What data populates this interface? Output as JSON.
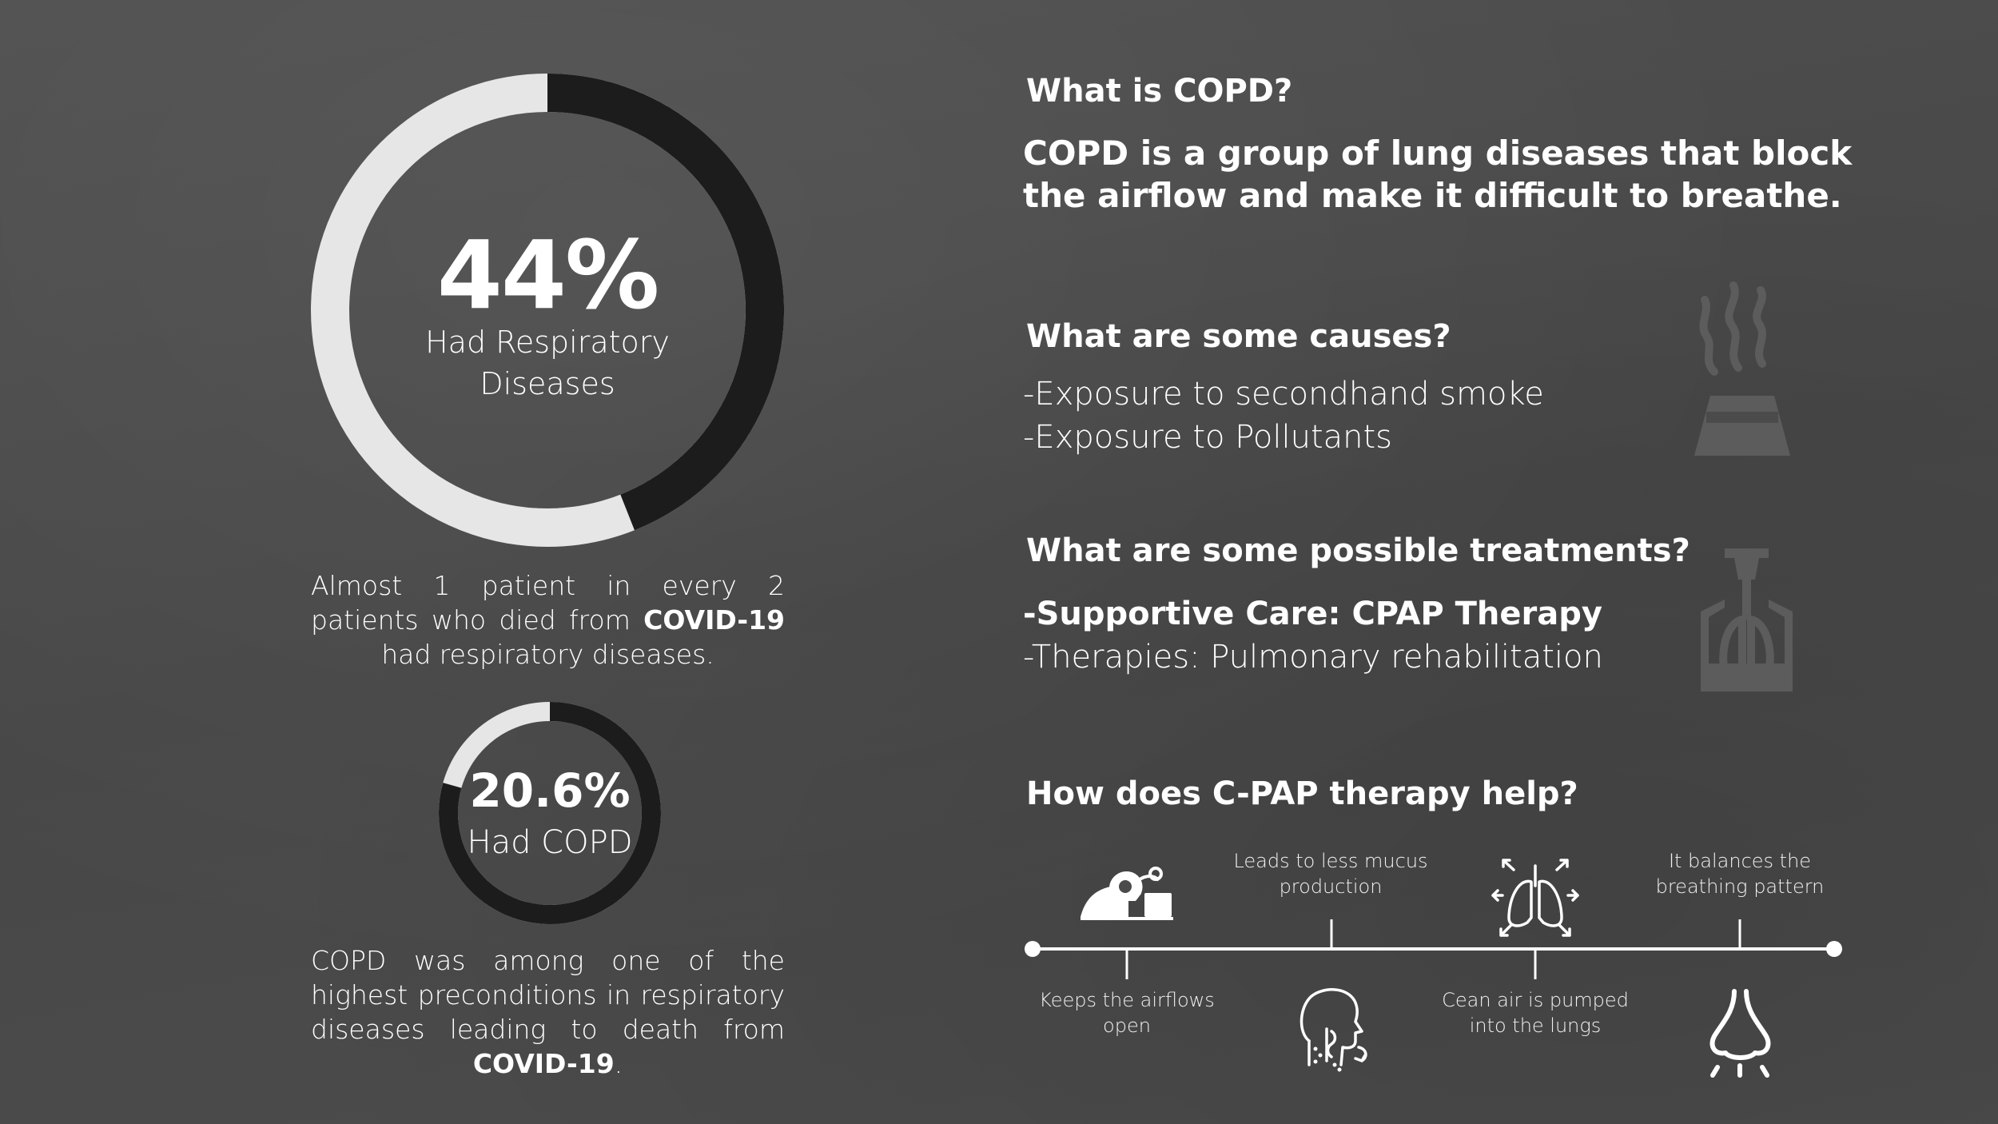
{
  "colors": {
    "background": "#4b4b4b",
    "ring_light": "#e6e6e6",
    "ring_dark": "#1c1c1c",
    "text": "#ffffff",
    "decor_icon": "#5a5a5a"
  },
  "stat_main": {
    "percent_value": 44,
    "percent_text": "44%",
    "label_line1": "Had Respiratory",
    "label_line2": "Diseases"
  },
  "stat_main_caption": {
    "text_before": "Almost 1 patient in every 2 patients who died from ",
    "bold": "COVID-19",
    "text_after": " had respiratory diseases."
  },
  "stat_secondary": {
    "percent_value": 20.6,
    "percent_text": "20.6%",
    "label": "Had COPD"
  },
  "stat_secondary_caption": {
    "text_before": "COPD was among one of the highest preconditions in respiratory diseases leading to death from ",
    "bold": "COVID-19",
    "text_after": "."
  },
  "section_what": {
    "question": "What is COPD?",
    "answer": "COPD is a group of lung diseases that block the airflow and make it difficult to breathe."
  },
  "section_causes": {
    "question": "What are some causes?",
    "items": [
      "-Exposure to secondhand smoke",
      "-Exposure to Pollutants"
    ],
    "icon": "factory-smoke-icon"
  },
  "section_treatments": {
    "question": "What are some possible treatments?",
    "items": [
      "-Supportive Care: CPAP Therapy",
      "-Therapies: Pulmonary rehabilitation"
    ],
    "icon": "lungs-inhaler-icon"
  },
  "section_cpap": {
    "question": "How does C-PAP therapy help?",
    "timeline": {
      "above": [
        {
          "icon": "cpap-mask-patient-icon"
        },
        {
          "text_line1": "Leads to less mucus",
          "text_line2": "production"
        },
        {
          "icon": "lungs-airflow-icon"
        },
        {
          "text_line1": "It balances the",
          "text_line2": "breathing pattern"
        }
      ],
      "below": [
        {
          "text_line1": "Keeps the airflows",
          "text_line2": "open"
        },
        {
          "icon": "head-throat-icon"
        },
        {
          "text_line1": "Cean air is pumped",
          "text_line2": "into the lungs"
        },
        {
          "icon": "nose-breathing-icon"
        }
      ]
    }
  }
}
